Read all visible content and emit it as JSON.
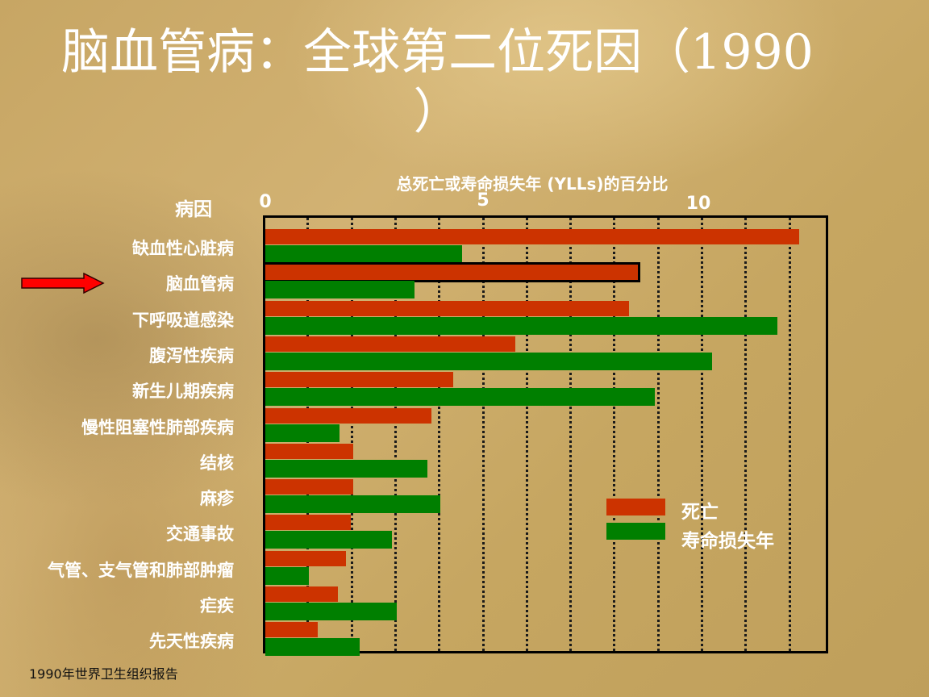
{
  "slide": {
    "title_line1": "脑血管病：全球第二位死因（1990",
    "title_line2": "）",
    "source": "1990年世界卫生组织报告"
  },
  "colors": {
    "deaths": "#cc3300",
    "ylls": "#007f00",
    "background": "#c8a865",
    "text": "#ffffff"
  },
  "chart_data": {
    "type": "bar",
    "orientation": "horizontal",
    "title": "总死亡或寿命损失年 (YLLs)的百分比",
    "xlabel": "总死亡或寿命损失年 (YLLs)的百分比",
    "ylabel": "病因",
    "xlim": [
      0,
      13
    ],
    "x_ticks": [
      "0",
      "5",
      "10"
    ],
    "grid": "vertical dotted every 1 unit",
    "legend_position": "right-center inside plot",
    "highlight": "脑血管病",
    "categories": [
      "缺血性心脏病",
      "脑血管病",
      "下呼吸道感染",
      "腹泻性疾病",
      "新生儿期疾病",
      "慢性阻塞性肺部疾病",
      "结核",
      "麻疹",
      "交通事故",
      "气管、支气管和肺部肿瘤",
      "疟疾",
      "先天性疾病"
    ],
    "series": [
      {
        "name": "死亡",
        "values": [
          12.2,
          8.5,
          8.3,
          5.7,
          4.3,
          3.8,
          2.0,
          2.0,
          1.95,
          1.85,
          1.65,
          1.2
        ]
      },
      {
        "name": "寿命损失年",
        "values": [
          4.5,
          3.4,
          11.7,
          10.2,
          8.9,
          1.7,
          3.7,
          4.0,
          2.9,
          1.0,
          3.0,
          2.15
        ]
      }
    ]
  },
  "legend": {
    "deaths": "死亡",
    "ylls": "寿命损失年"
  },
  "icons": {
    "arrow": "right-arrow-icon"
  }
}
